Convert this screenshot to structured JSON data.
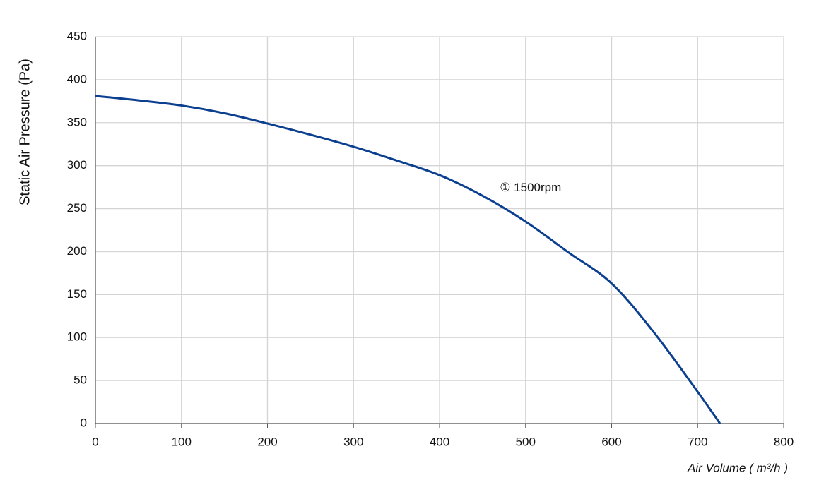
{
  "chart_data": {
    "type": "line",
    "x_label": "Air Volume ( m³/h )",
    "y_label": "Static Air Pressure  (Pa)",
    "x": [
      0,
      50,
      100,
      150,
      200,
      250,
      300,
      350,
      400,
      450,
      500,
      550,
      600,
      650,
      700,
      726
    ],
    "series": [
      {
        "name": "1500rpm",
        "color": "#0b3f8f",
        "values": [
          381,
          376,
          370,
          361,
          349,
          336,
          322,
          306,
          289,
          265,
          235,
          199,
          163,
          105,
          37,
          0
        ]
      }
    ],
    "annotations": [
      {
        "text": "① 1500rpm",
        "x": 470,
        "y": 274
      }
    ],
    "xlim": [
      0,
      800
    ],
    "xticks": [
      0,
      100,
      200,
      300,
      400,
      500,
      600,
      700,
      800
    ],
    "ylim": [
      0,
      450
    ],
    "yticks": [
      0,
      50,
      100,
      150,
      200,
      250,
      300,
      350,
      400,
      450
    ],
    "grid": true
  }
}
